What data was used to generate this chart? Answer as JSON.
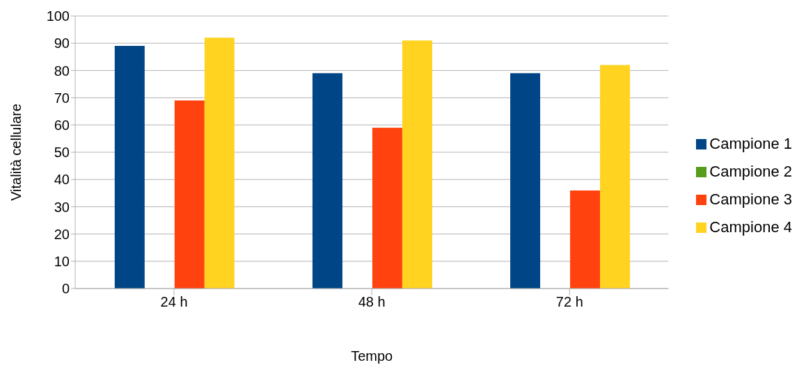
{
  "chart_data": {
    "type": "bar",
    "xlabel": "Tempo",
    "ylabel": "Vitalità cellulare",
    "categories": [
      "24 h",
      "48 h",
      "72 h"
    ],
    "series": [
      {
        "name": "Campione 1",
        "color": "#004586",
        "values": [
          89,
          79,
          79
        ]
      },
      {
        "name": "Campione 2",
        "color": "#579d1c",
        "values": [
          null,
          null,
          null
        ]
      },
      {
        "name": "Campione 3",
        "color": "#ff420e",
        "values": [
          69,
          59,
          36
        ]
      },
      {
        "name": "Campione 4",
        "color": "#ffd320",
        "values": [
          92,
          91,
          82
        ]
      }
    ],
    "ylim": [
      0,
      100
    ],
    "yticks": [
      0,
      10,
      20,
      30,
      40,
      50,
      60,
      70,
      80,
      90,
      100
    ],
    "grid": "y",
    "legend": "right"
  }
}
